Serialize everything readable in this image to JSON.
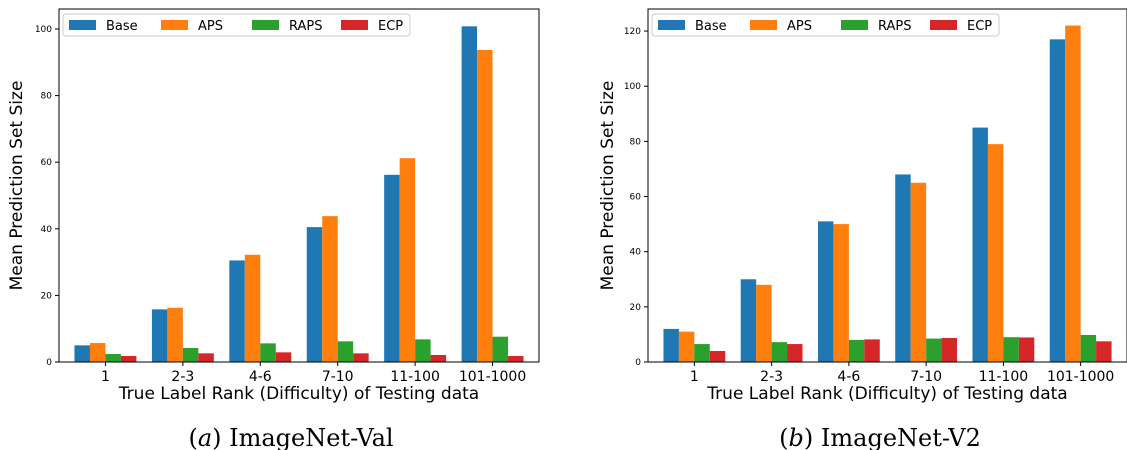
{
  "chart_data": [
    {
      "type": "bar",
      "xlabel": "True Label Rank (Difficulty) of Testing data",
      "ylabel": "Mean Prediction Set Size",
      "caption_letter": "(a)",
      "caption_text": "ImageNet-Val",
      "categories": [
        "1",
        "2-3",
        "4-6",
        "7-10",
        "11-100",
        "101-1000"
      ],
      "ylim": [
        0,
        106
      ],
      "yticks": [
        0,
        20,
        40,
        60,
        80,
        100
      ],
      "legend_position": "top",
      "series": [
        {
          "name": "Base",
          "color": "#1f77b4",
          "values": [
            5.0,
            15.8,
            30.5,
            40.5,
            56.2,
            100.8
          ]
        },
        {
          "name": "APS",
          "color": "#ff7f0e",
          "values": [
            5.7,
            16.3,
            32.2,
            43.8,
            61.2,
            93.7
          ]
        },
        {
          "name": "RAPS",
          "color": "#2ca02c",
          "values": [
            2.4,
            4.2,
            5.6,
            6.2,
            6.8,
            7.6
          ]
        },
        {
          "name": "ECP",
          "color": "#d62728",
          "values": [
            1.8,
            2.6,
            2.9,
            2.6,
            2.1,
            1.8
          ]
        }
      ]
    },
    {
      "type": "bar",
      "xlabel": "True Label Rank (Difficulty) of Testing data",
      "ylabel": "Mean Prediction Set Size",
      "caption_letter": "(b)",
      "caption_text": "ImageNet-V2",
      "categories": [
        "1",
        "2-3",
        "4-6",
        "7-10",
        "11-100",
        "101-1000"
      ],
      "ylim": [
        0,
        128
      ],
      "yticks": [
        0,
        20,
        40,
        60,
        80,
        100,
        120
      ],
      "legend_position": "top",
      "series": [
        {
          "name": "Base",
          "color": "#1f77b4",
          "values": [
            12.0,
            30.0,
            51.0,
            68.0,
            85.0,
            117.0
          ]
        },
        {
          "name": "APS",
          "color": "#ff7f0e",
          "values": [
            11.0,
            28.0,
            50.0,
            65.0,
            79.0,
            122.0
          ]
        },
        {
          "name": "RAPS",
          "color": "#2ca02c",
          "values": [
            6.5,
            7.2,
            8.0,
            8.5,
            9.0,
            9.8
          ]
        },
        {
          "name": "ECP",
          "color": "#d62728",
          "values": [
            4.0,
            6.5,
            8.2,
            8.7,
            8.9,
            7.5
          ]
        }
      ]
    }
  ]
}
